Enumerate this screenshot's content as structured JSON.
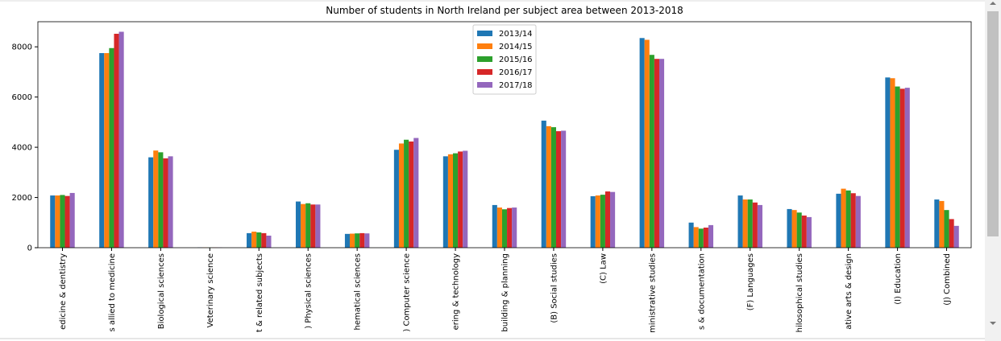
{
  "chart_data": {
    "type": "bar",
    "title": "Number of students in North Ireland per subject area between 2013-2018",
    "categories": [
      "edicine & dentistry",
      "s allied to medicine",
      "Biological sciences",
      "Veterinary science",
      "t & related subjects",
      ") Physical sciences",
      "hematical sciences",
      ") Computer science",
      "ering & technology",
      "building & planning",
      "(B) Social studies",
      "(C) Law",
      "ministrative studies",
      "s & documentation",
      "(F) Languages",
      "hilosophical studies",
      "ative arts & design",
      "(I) Education",
      "(J) Combined"
    ],
    "series": [
      {
        "name": "2013/14",
        "color": "#1f77b4",
        "values": [
          2080,
          7750,
          3600,
          10,
          580,
          1840,
          550,
          3900,
          3640,
          1700,
          5060,
          2050,
          8350,
          1000,
          2080,
          1540,
          2150,
          6780,
          1920
        ]
      },
      {
        "name": "2014/15",
        "color": "#ff7f0e",
        "values": [
          2080,
          7750,
          3870,
          10,
          640,
          1740,
          560,
          4150,
          3720,
          1600,
          4840,
          2080,
          8280,
          820,
          1920,
          1500,
          2350,
          6750,
          1860
        ]
      },
      {
        "name": "2015/16",
        "color": "#2ca02c",
        "values": [
          2100,
          7950,
          3800,
          10,
          610,
          1770,
          570,
          4300,
          3760,
          1530,
          4800,
          2110,
          7680,
          760,
          1920,
          1400,
          2280,
          6420,
          1500
        ]
      },
      {
        "name": "2016/17",
        "color": "#d62728",
        "values": [
          2060,
          8520,
          3560,
          10,
          580,
          1720,
          580,
          4230,
          3830,
          1580,
          4640,
          2240,
          7520,
          800,
          1800,
          1280,
          2170,
          6330,
          1140
        ]
      },
      {
        "name": "2017/18",
        "color": "#9467bd",
        "values": [
          2180,
          8600,
          3640,
          10,
          480,
          1720,
          570,
          4370,
          3860,
          1600,
          4660,
          2220,
          7520,
          900,
          1700,
          1220,
          2060,
          6370,
          870
        ]
      }
    ],
    "ylim": [
      0,
      9000
    ],
    "yticks": [
      0,
      2000,
      4000,
      6000,
      8000
    ],
    "legend": "upper center"
  }
}
